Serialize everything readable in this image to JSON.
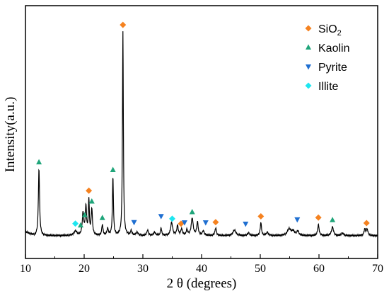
{
  "chart_data": {
    "type": "line",
    "xlabel": "2 θ (degrees)",
    "ylabel": "Intensity(a.u.)",
    "xlim": [
      10,
      70
    ],
    "x_ticks": [
      "10",
      "20",
      "30",
      "40",
      "50",
      "60",
      "70"
    ],
    "y_ticks_labeled": false,
    "grid": false,
    "legend_position": "top-right",
    "legend": [
      {
        "label_main": "SiO",
        "label_sub": "2",
        "marker": "diamond",
        "color": "#f58220"
      },
      {
        "label_main": "Kaolin",
        "label_sub": "",
        "marker": "triangle-up",
        "color": "#1fa57a"
      },
      {
        "label_main": "Pyrite",
        "label_sub": "",
        "marker": "triangle-down",
        "color": "#1f6fd1"
      },
      {
        "label_main": "Illite",
        "label_sub": "",
        "marker": "diamond",
        "color": "#1ee6f0"
      }
    ],
    "line_color": "#000000",
    "baseline": 0.03,
    "peaks": [
      [
        12.3,
        0.31,
        0.12
      ],
      [
        18.5,
        0.02,
        0.3
      ],
      [
        19.8,
        0.1,
        0.15
      ],
      [
        20.3,
        0.13,
        0.13
      ],
      [
        20.8,
        0.16,
        0.1
      ],
      [
        21.3,
        0.12,
        0.13
      ],
      [
        23.1,
        0.05,
        0.12
      ],
      [
        24.0,
        0.03,
        0.15
      ],
      [
        24.9,
        0.27,
        0.1
      ],
      [
        26.6,
        0.94,
        0.09
      ],
      [
        28.0,
        0.02,
        0.15
      ],
      [
        29.0,
        0.015,
        0.2
      ],
      [
        30.8,
        0.025,
        0.15
      ],
      [
        32.0,
        0.015,
        0.2
      ],
      [
        33.1,
        0.035,
        0.12
      ],
      [
        34.9,
        0.06,
        0.2
      ],
      [
        35.9,
        0.045,
        0.15
      ],
      [
        36.6,
        0.03,
        0.15
      ],
      [
        37.5,
        0.025,
        0.15
      ],
      [
        38.4,
        0.08,
        0.2
      ],
      [
        39.3,
        0.06,
        0.15
      ],
      [
        40.3,
        0.02,
        0.2
      ],
      [
        42.4,
        0.035,
        0.15
      ],
      [
        45.6,
        0.025,
        0.3
      ],
      [
        48.0,
        0.012,
        0.2
      ],
      [
        50.1,
        0.06,
        0.13
      ],
      [
        51.2,
        0.015,
        0.2
      ],
      [
        54.9,
        0.03,
        0.35
      ],
      [
        55.6,
        0.02,
        0.3
      ],
      [
        56.4,
        0.02,
        0.2
      ],
      [
        59.9,
        0.05,
        0.15
      ],
      [
        62.3,
        0.04,
        0.2
      ],
      [
        64.0,
        0.012,
        0.2
      ],
      [
        67.8,
        0.03,
        0.15
      ],
      [
        68.2,
        0.03,
        0.15
      ]
    ],
    "markers": [
      {
        "series": "SiO2",
        "x": [
          20.8,
          26.6,
          36.5,
          42.4,
          50.1,
          59.9,
          68.1
        ]
      },
      {
        "series": "Kaolin",
        "x": [
          12.3,
          19.4,
          20.1,
          21.3,
          23.1,
          24.9,
          38.4,
          62.3
        ]
      },
      {
        "series": "Pyrite",
        "x": [
          28.5,
          33.1,
          37.1,
          40.7,
          47.5,
          56.3
        ]
      },
      {
        "series": "Illite",
        "x": [
          18.5,
          35.0
        ]
      }
    ]
  }
}
